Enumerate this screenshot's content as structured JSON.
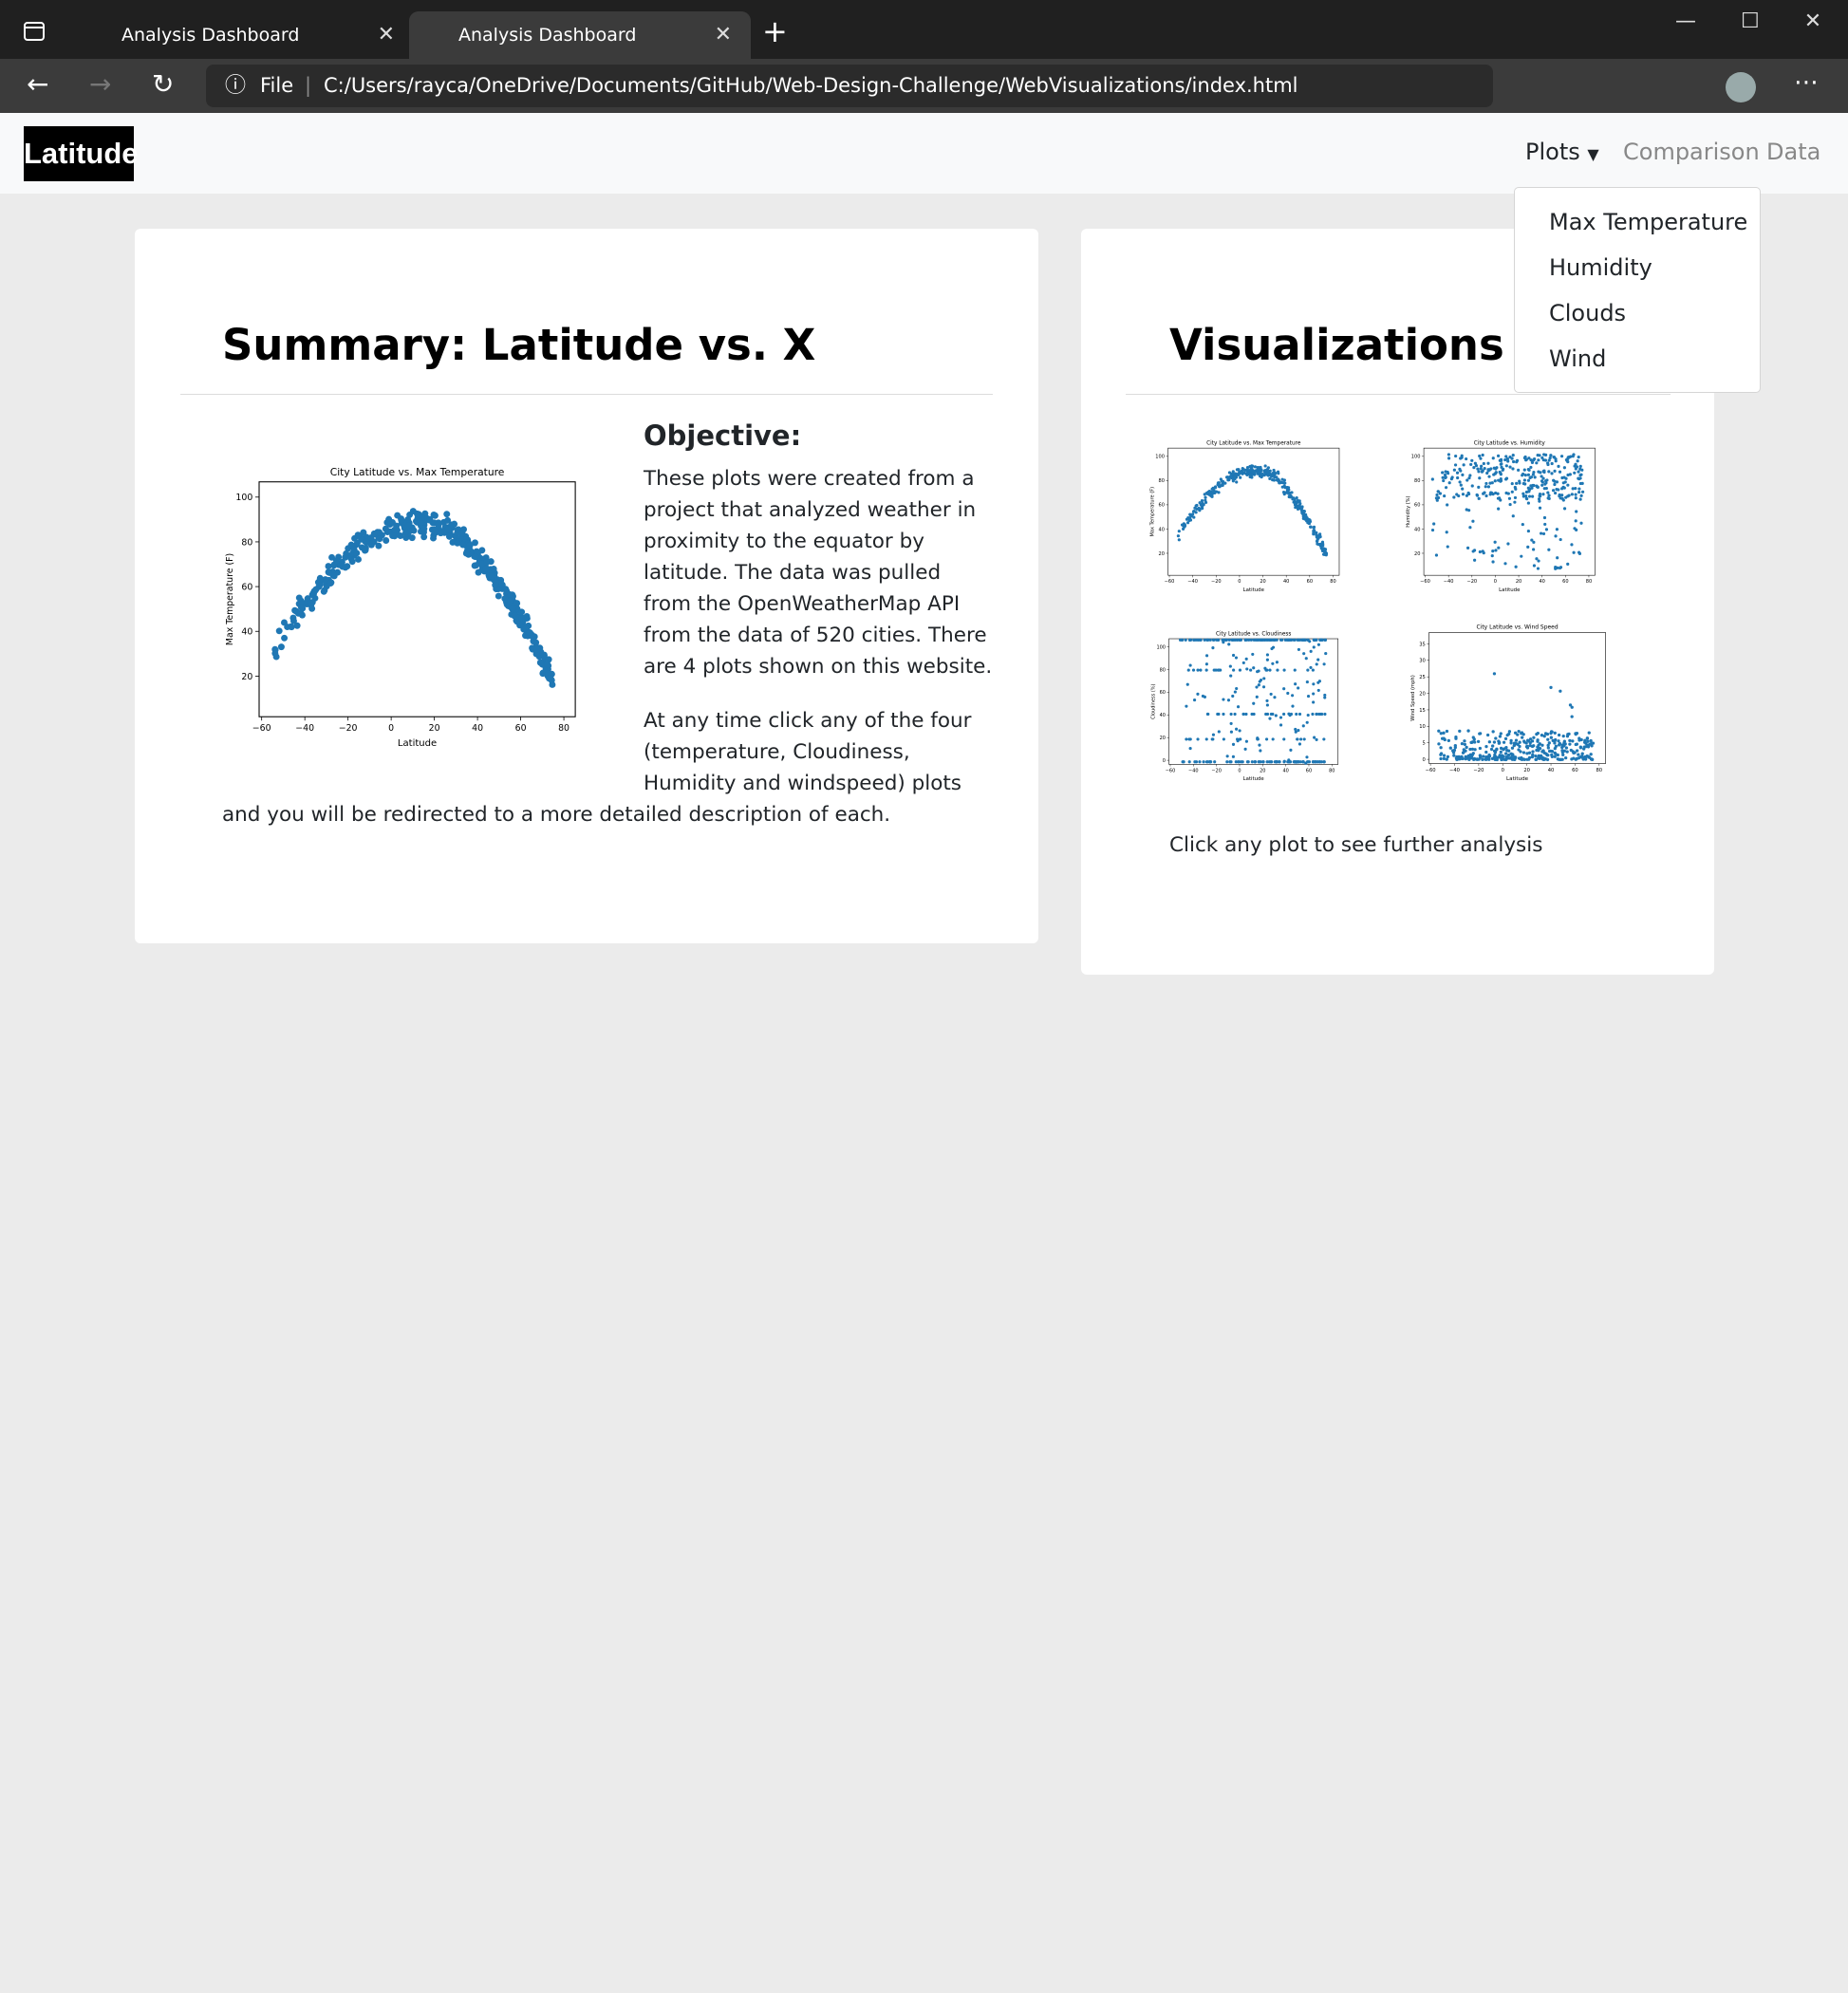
{
  "browser": {
    "tabs": [
      "Analysis Dashboard",
      "Analysis Dashboard"
    ],
    "scheme": "File",
    "url": "C:/Users/rayca/OneDrive/Documents/GitHub/Web-Design-Challenge/WebVisualizations/index.html"
  },
  "navbar": {
    "brand": "Latitude",
    "items": [
      "Plots",
      "Comparison",
      "Data"
    ],
    "dropdown": [
      "Max Temperature",
      "Humidity",
      "Clouds",
      "Wind"
    ]
  },
  "summary": {
    "title": "Summary: Latitude vs. X",
    "objective": "Objective:",
    "paragraphs": [
      "These plots were created from a project that analyzed weather in proximity to the equator by latitude. The data was pulled from the OpenWeatherMap API from the data of 520 cities. There are 4 plots shown on this website.",
      "At any time click any of the four (temperature, Cloudiness, Humidity and windspeed) plots and you will be redirected to a more detailed description of each."
    ],
    "plot": {
      "title": "City Latitude vs. Max Temperature",
      "x_label": "Latitude",
      "y_label": "Max Temperature (F)",
      "xticks": [
        "−60",
        "−40",
        "−20",
        "0",
        "20",
        "40",
        "60",
        "80"
      ],
      "yticks": [
        "20",
        "40",
        "60",
        "80",
        "100"
      ]
    }
  },
  "visualizations": {
    "title": "Visualizations",
    "plots": [
      {
        "title": "City Latitude vs. Max Temperature",
        "x_label": "Latitude",
        "y_label": "Max Temperature (F)",
        "xticks": [
          "−60",
          "−40",
          "−20",
          "0",
          "20",
          "40",
          "60",
          "80"
        ],
        "yticks": [
          "20",
          "40",
          "60",
          "80",
          "100"
        ]
      },
      {
        "title": "City Latitude vs. Humidity",
        "x_label": "Latitude",
        "y_label": "Humidity (%)",
        "xticks": [
          "−60",
          "−40",
          "−20",
          "0",
          "20",
          "40",
          "60",
          "80"
        ],
        "yticks": [
          "20",
          "40",
          "60",
          "80",
          "100"
        ]
      },
      {
        "title": "City Latitude vs. Cloudiness",
        "x_label": "Latitude",
        "y_label": "Cloudiness (%)",
        "xticks": [
          "−60",
          "−40",
          "−20",
          "0",
          "20",
          "40",
          "60",
          "80"
        ],
        "yticks": [
          "0",
          "20",
          "40",
          "60",
          "80",
          "100"
        ]
      },
      {
        "title": "City Latitude vs. Wind Speed",
        "x_label": "Latitude",
        "y_label": "Wind Speed (mph)",
        "xticks": [
          "−60",
          "−40",
          "−20",
          "0",
          "20",
          "40",
          "60",
          "80"
        ],
        "yticks": [
          "0",
          "5",
          "10",
          "15",
          "20",
          "25",
          "30",
          "35"
        ]
      }
    ],
    "caption": "Click any plot to see further analysis"
  }
}
